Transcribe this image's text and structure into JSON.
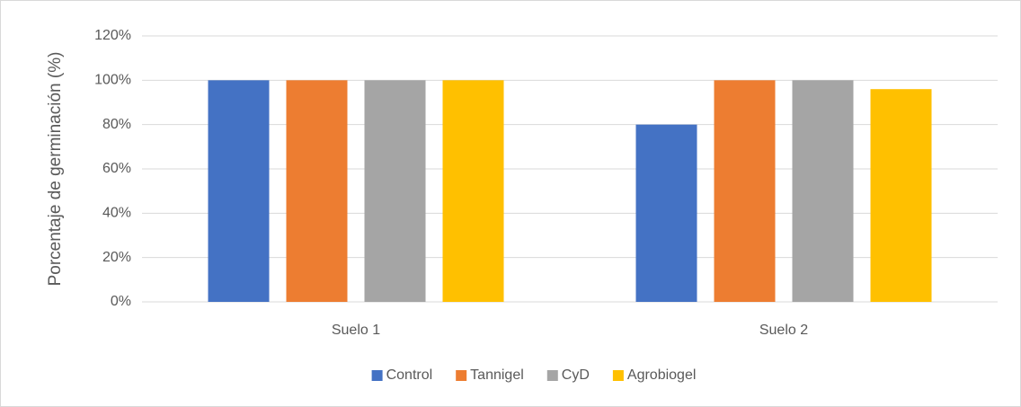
{
  "chart_data": {
    "type": "bar",
    "y_label": "Porcentaje de germinación (%)",
    "categories": [
      "Suelo 1",
      "Suelo 2"
    ],
    "series": [
      {
        "name": "Control",
        "color": "#4472c4",
        "values": [
          100,
          80
        ]
      },
      {
        "name": "Tannigel",
        "color": "#ed7d31",
        "values": [
          100,
          100
        ]
      },
      {
        "name": "CyD",
        "color": "#a5a5a5",
        "values": [
          100,
          100
        ]
      },
      {
        "name": "Agrobiogel",
        "color": "#ffc000",
        "values": [
          100,
          96
        ]
      }
    ],
    "ylim": [
      0,
      120
    ],
    "yticks": [
      {
        "value": 0,
        "label": "0%"
      },
      {
        "value": 20,
        "label": "20%"
      },
      {
        "value": 40,
        "label": "40%"
      },
      {
        "value": 60,
        "label": "60%"
      },
      {
        "value": 80,
        "label": "80%"
      },
      {
        "value": 100,
        "label": "100%"
      },
      {
        "value": 120,
        "label": "120%"
      }
    ],
    "grid": true,
    "legend": "bottom"
  }
}
